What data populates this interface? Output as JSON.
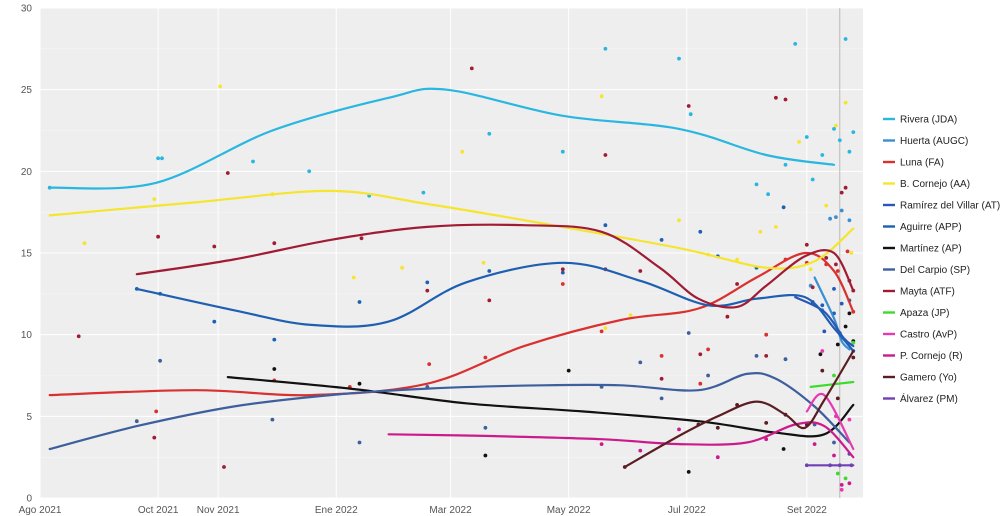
{
  "chart_data": {
    "type": "scatter",
    "subtype": "scatter with LOESS trend lines",
    "title": "",
    "xlabel": "",
    "ylabel": "",
    "ylim": [
      0,
      30
    ],
    "y_ticks": [
      0,
      5,
      10,
      15,
      20,
      25,
      30
    ],
    "x_ticks": [
      {
        "t": 0,
        "label": "Ago 2021"
      },
      {
        "t": 61,
        "label": "Oct 2021"
      },
      {
        "t": 92,
        "label": "Nov 2021"
      },
      {
        "t": 153,
        "label": "Ene 2022"
      },
      {
        "t": 212,
        "label": "Mar 2022"
      },
      {
        "t": 273,
        "label": "May 2022"
      },
      {
        "t": 334,
        "label": "Jul 2022"
      },
      {
        "t": 396,
        "label": "Set 2022"
      }
    ],
    "x_unit": "days since 2021-08-01",
    "xlim": [
      0,
      425
    ],
    "vline_t": 413,
    "grid": true,
    "legend_position": "right",
    "series": [
      {
        "name": "Rivera (JDA)",
        "color": "#29b6e0",
        "line": [
          [
            5,
            19.0
          ],
          [
            60,
            19.3
          ],
          [
            120,
            22.5
          ],
          [
            180,
            24.5
          ],
          [
            210,
            25.0
          ],
          [
            270,
            23.4
          ],
          [
            330,
            22.6
          ],
          [
            375,
            21.0
          ],
          [
            410,
            20.4
          ]
        ],
        "points": [
          [
            5,
            19.0
          ],
          [
            61,
            20.8
          ],
          [
            63,
            20.8
          ],
          [
            110,
            20.6
          ],
          [
            139,
            20.0
          ],
          [
            170,
            18.5
          ],
          [
            198,
            18.7
          ],
          [
            232,
            22.3
          ],
          [
            270,
            21.2
          ],
          [
            292,
            27.5
          ],
          [
            330,
            26.9
          ],
          [
            336,
            23.5
          ],
          [
            370,
            19.2
          ],
          [
            376,
            18.6
          ],
          [
            385,
            20.4
          ],
          [
            390,
            27.8
          ],
          [
            396,
            22.1
          ],
          [
            399,
            19.5
          ],
          [
            404,
            21.0
          ],
          [
            410,
            22.6
          ],
          [
            413,
            21.9
          ],
          [
            416,
            28.1
          ],
          [
            418,
            21.2
          ],
          [
            420,
            22.4
          ]
        ]
      },
      {
        "name": "Huerta (AUGC)",
        "color": "#3a8fd4",
        "line": [
          [
            400,
            13.5
          ],
          [
            410,
            11.0
          ],
          [
            414,
            9.6
          ],
          [
            418,
            9.1
          ]
        ],
        "points": [
          [
            398,
            13.0
          ],
          [
            404,
            11.5
          ],
          [
            408,
            17.1
          ],
          [
            411,
            17.2
          ],
          [
            414,
            17.6
          ],
          [
            418,
            17.0
          ]
        ]
      },
      {
        "name": "Luna (FA)",
        "color": "#d93030",
        "line": [
          [
            5,
            6.3
          ],
          [
            80,
            6.6
          ],
          [
            140,
            6.3
          ],
          [
            200,
            7.0
          ],
          [
            250,
            9.3
          ],
          [
            300,
            10.9
          ],
          [
            340,
            11.6
          ],
          [
            370,
            13.5
          ],
          [
            395,
            15.0
          ],
          [
            410,
            13.9
          ],
          [
            420,
            11.4
          ]
        ],
        "points": [
          [
            60,
            5.3
          ],
          [
            121,
            7.2
          ],
          [
            160,
            6.8
          ],
          [
            201,
            8.2
          ],
          [
            230,
            8.6
          ],
          [
            270,
            13.1
          ],
          [
            290,
            10.2
          ],
          [
            321,
            8.7
          ],
          [
            341,
            7.0
          ],
          [
            345,
            9.1
          ],
          [
            375,
            10.0
          ],
          [
            385,
            14.6
          ],
          [
            396,
            14.4
          ],
          [
            406,
            14.3
          ],
          [
            412,
            13.9
          ],
          [
            417,
            15.1
          ],
          [
            420,
            11.4
          ]
        ]
      },
      {
        "name": "B. Cornejo (AA)",
        "color": "#f5e52e",
        "line": [
          [
            5,
            17.3
          ],
          [
            80,
            18.1
          ],
          [
            150,
            18.8
          ],
          [
            200,
            18.0
          ],
          [
            260,
            16.8
          ],
          [
            330,
            15.3
          ],
          [
            375,
            14.1
          ],
          [
            400,
            14.5
          ],
          [
            420,
            16.5
          ]
        ],
        "points": [
          [
            23,
            15.6
          ],
          [
            59,
            18.3
          ],
          [
            93,
            25.2
          ],
          [
            120,
            18.6
          ],
          [
            162,
            13.5
          ],
          [
            187,
            14.1
          ],
          [
            218,
            21.2
          ],
          [
            229,
            14.4
          ],
          [
            290,
            24.6
          ],
          [
            292,
            10.4
          ],
          [
            305,
            11.2
          ],
          [
            330,
            17.0
          ],
          [
            345,
            14.9
          ],
          [
            360,
            14.6
          ],
          [
            372,
            16.3
          ],
          [
            380,
            16.6
          ],
          [
            392,
            21.8
          ],
          [
            398,
            14.0
          ],
          [
            406,
            17.9
          ],
          [
            411,
            22.8
          ],
          [
            416,
            24.2
          ],
          [
            419,
            15.0
          ]
        ]
      },
      {
        "name": "Ramírez del Villar (AT)",
        "color": "#2a56b8",
        "line": [
          [
            390,
            12.3
          ],
          [
            405,
            11.4
          ],
          [
            415,
            9.8
          ],
          [
            420,
            9.3
          ]
        ],
        "points": [
          [
            405,
            10.2
          ],
          [
            410,
            12.8
          ],
          [
            414,
            11.9
          ],
          [
            418,
            12.1
          ]
        ]
      },
      {
        "name": "Aguirre (APP)",
        "color": "#1e5fb2",
        "line": [
          [
            50,
            12.8
          ],
          [
            100,
            11.5
          ],
          [
            140,
            10.6
          ],
          [
            180,
            10.8
          ],
          [
            220,
            13.2
          ],
          [
            270,
            14.4
          ],
          [
            310,
            13.3
          ],
          [
            345,
            11.8
          ],
          [
            370,
            12.2
          ],
          [
            395,
            12.3
          ],
          [
            410,
            10.4
          ],
          [
            420,
            9.0
          ]
        ],
        "points": [
          [
            50,
            12.8
          ],
          [
            62,
            12.5
          ],
          [
            90,
            10.8
          ],
          [
            121,
            9.7
          ],
          [
            165,
            12.0
          ],
          [
            200,
            13.2
          ],
          [
            232,
            13.9
          ],
          [
            270,
            13.8
          ],
          [
            292,
            16.7
          ],
          [
            321,
            15.8
          ],
          [
            341,
            16.3
          ],
          [
            350,
            14.8
          ],
          [
            370,
            14.1
          ],
          [
            384,
            17.8
          ],
          [
            399,
            12.0
          ],
          [
            404,
            11.8
          ],
          [
            410,
            11.3
          ],
          [
            413,
            10.1
          ],
          [
            420,
            9.0
          ]
        ]
      },
      {
        "name": "Martínez (AP)",
        "color": "#111111",
        "line": [
          [
            97,
            7.4
          ],
          [
            160,
            6.7
          ],
          [
            220,
            5.8
          ],
          [
            280,
            5.3
          ],
          [
            340,
            4.7
          ],
          [
            380,
            4.0
          ],
          [
            405,
            3.9
          ],
          [
            420,
            5.7
          ]
        ],
        "points": [
          [
            121,
            7.9
          ],
          [
            165,
            7.0
          ],
          [
            230,
            2.6
          ],
          [
            273,
            7.8
          ],
          [
            335,
            1.6
          ],
          [
            384,
            3.0
          ],
          [
            403,
            8.8
          ],
          [
            412,
            9.4
          ],
          [
            416,
            10.5
          ],
          [
            418,
            11.3
          ],
          [
            420,
            9.6
          ]
        ]
      },
      {
        "name": "Del Carpio (SP)",
        "color": "#3d5f9e",
        "line": [
          [
            5,
            3.0
          ],
          [
            50,
            4.4
          ],
          [
            100,
            5.6
          ],
          [
            150,
            6.3
          ],
          [
            200,
            6.7
          ],
          [
            260,
            6.9
          ],
          [
            300,
            6.9
          ],
          [
            340,
            6.6
          ],
          [
            365,
            7.6
          ],
          [
            380,
            7.3
          ],
          [
            400,
            5.6
          ],
          [
            418,
            3.4
          ]
        ],
        "points": [
          [
            50,
            4.7
          ],
          [
            62,
            8.4
          ],
          [
            120,
            4.8
          ],
          [
            165,
            3.4
          ],
          [
            200,
            6.8
          ],
          [
            230,
            4.3
          ],
          [
            290,
            6.8
          ],
          [
            310,
            8.3
          ],
          [
            321,
            6.1
          ],
          [
            335,
            10.1
          ],
          [
            345,
            7.5
          ],
          [
            370,
            8.7
          ],
          [
            385,
            8.5
          ],
          [
            400,
            4.5
          ],
          [
            410,
            3.4
          ],
          [
            418,
            2.7
          ]
        ]
      },
      {
        "name": "Mayta (ATF)",
        "color": "#a01c35",
        "line": [
          [
            50,
            13.7
          ],
          [
            100,
            14.6
          ],
          [
            150,
            15.8
          ],
          [
            200,
            16.6
          ],
          [
            250,
            16.7
          ],
          [
            290,
            16.3
          ],
          [
            320,
            14.1
          ],
          [
            340,
            12.2
          ],
          [
            360,
            11.7
          ],
          [
            375,
            13.0
          ],
          [
            395,
            14.8
          ],
          [
            410,
            15.0
          ],
          [
            420,
            12.7
          ]
        ],
        "points": [
          [
            20,
            9.9
          ],
          [
            59,
            3.7
          ],
          [
            61,
            16.0
          ],
          [
            90,
            15.4
          ],
          [
            95,
            1.9
          ],
          [
            97,
            19.9
          ],
          [
            121,
            15.6
          ],
          [
            166,
            15.9
          ],
          [
            200,
            12.7
          ],
          [
            223,
            26.3
          ],
          [
            232,
            12.1
          ],
          [
            270,
            14.0
          ],
          [
            292,
            21.0
          ],
          [
            292,
            14.0
          ],
          [
            310,
            13.9
          ],
          [
            321,
            7.3
          ],
          [
            335,
            24.0
          ],
          [
            341,
            8.8
          ],
          [
            355,
            11.1
          ],
          [
            360,
            13.1
          ],
          [
            375,
            8.7
          ],
          [
            380,
            24.5
          ],
          [
            385,
            24.4
          ],
          [
            396,
            15.5
          ],
          [
            399,
            12.9
          ],
          [
            406,
            14.7
          ],
          [
            411,
            14.3
          ],
          [
            414,
            18.7
          ],
          [
            416,
            19.0
          ],
          [
            418,
            13.3
          ],
          [
            420,
            12.7
          ]
        ]
      },
      {
        "name": "Apaza (JP)",
        "color": "#3ddc2a",
        "line": [
          [
            398,
            6.8
          ],
          [
            420,
            7.1
          ]
        ],
        "points": [
          [
            410,
            7.5
          ],
          [
            412,
            1.5
          ],
          [
            416,
            1.2
          ],
          [
            420,
            9.5
          ]
        ]
      },
      {
        "name": "Castro (AvP)",
        "color": "#e83ab0",
        "line": [
          [
            396,
            5.3
          ],
          [
            405,
            6.3
          ],
          [
            420,
            3.0
          ]
        ],
        "points": [
          [
            404,
            9.0
          ],
          [
            411,
            5.0
          ],
          [
            414,
            0.5
          ],
          [
            418,
            4.8
          ]
        ]
      },
      {
        "name": "P. Cornejo (R)",
        "color": "#cc1a8c",
        "line": [
          [
            180,
            3.9
          ],
          [
            230,
            3.8
          ],
          [
            290,
            3.6
          ],
          [
            330,
            3.3
          ],
          [
            365,
            3.4
          ],
          [
            390,
            4.5
          ],
          [
            405,
            4.4
          ],
          [
            420,
            2.5
          ]
        ],
        "points": [
          [
            290,
            3.3
          ],
          [
            310,
            2.9
          ],
          [
            330,
            4.2
          ],
          [
            350,
            2.5
          ],
          [
            375,
            3.6
          ],
          [
            400,
            3.3
          ],
          [
            410,
            2.6
          ],
          [
            414,
            0.8
          ],
          [
            418,
            0.9
          ]
        ]
      },
      {
        "name": "Gamero (Yo)",
        "color": "#5a1e22",
        "line": [
          [
            302,
            1.9
          ],
          [
            330,
            3.8
          ],
          [
            350,
            5.0
          ],
          [
            370,
            5.9
          ],
          [
            385,
            5.1
          ],
          [
            395,
            4.3
          ],
          [
            405,
            6.0
          ],
          [
            420,
            9.0
          ]
        ],
        "points": [
          [
            302,
            1.9
          ],
          [
            340,
            4.5
          ],
          [
            350,
            4.3
          ],
          [
            360,
            5.7
          ],
          [
            375,
            4.6
          ],
          [
            385,
            5.1
          ],
          [
            396,
            4.5
          ],
          [
            404,
            7.8
          ],
          [
            412,
            6.1
          ],
          [
            420,
            8.6
          ]
        ]
      },
      {
        "name": "Álvarez (PM)",
        "color": "#7040b5",
        "line": [
          [
            397,
            2.0
          ],
          [
            420,
            2.0
          ]
        ],
        "points": [
          [
            396,
            2.0
          ],
          [
            408,
            2.0
          ],
          [
            413,
            2.0
          ],
          [
            419,
            2.0
          ]
        ]
      }
    ]
  }
}
